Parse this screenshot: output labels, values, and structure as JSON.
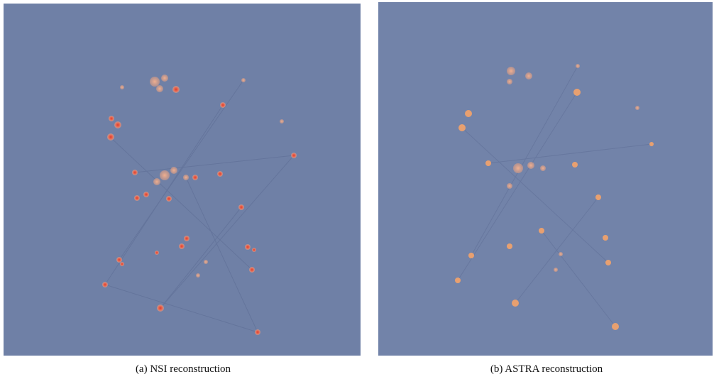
{
  "figure": {
    "panels": [
      {
        "caption": "(a) NSI reconstruction"
      },
      {
        "caption": "(b) ASTRA reconstruction"
      }
    ]
  }
}
